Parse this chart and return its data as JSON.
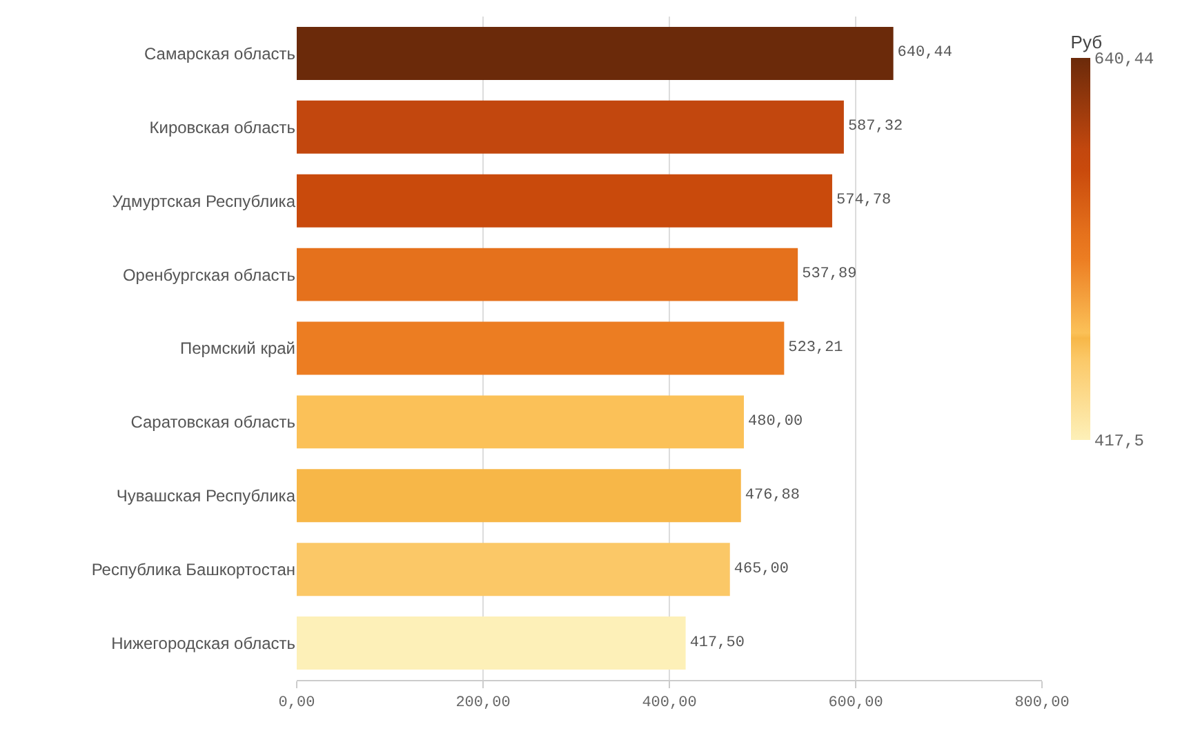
{
  "chart_data": {
    "type": "bar",
    "orientation": "horizontal",
    "categories": [
      "Самарская область",
      "Кировская область",
      "Удмуртская Республика",
      "Оренбургская область",
      "Пермский край",
      "Саратовская область",
      "Чувашская Республика",
      "Республика Башкортостан",
      "Нижегородская область"
    ],
    "values": [
      640.44,
      587.32,
      574.78,
      537.89,
      523.21,
      480.0,
      476.88,
      465.0,
      417.5
    ],
    "value_labels": [
      "640,44",
      "587,32",
      "574,78",
      "537,89",
      "523,21",
      "480,00",
      "476,88",
      "465,00",
      "417,50"
    ],
    "colors": [
      "#6b2a0a",
      "#c2470e",
      "#c94a0c",
      "#e5711c",
      "#ec7d22",
      "#fbc158",
      "#f7b748",
      "#fbc867",
      "#fdf0b8"
    ],
    "xlim": [
      0,
      800
    ],
    "xticks": [
      {
        "value": 0,
        "label": "0,00"
      },
      {
        "value": 200,
        "label": "200,00"
      },
      {
        "value": 400,
        "label": "400,00"
      },
      {
        "value": 600,
        "label": "600,00"
      },
      {
        "value": 800,
        "label": "800,00"
      }
    ],
    "grid": "x",
    "clabel": "Руб",
    "clim": [
      417.5,
      640.44
    ],
    "cticks": [
      {
        "value": 417.5,
        "label": "417,5"
      },
      {
        "value": 640.44,
        "label": "640,44"
      }
    ]
  }
}
